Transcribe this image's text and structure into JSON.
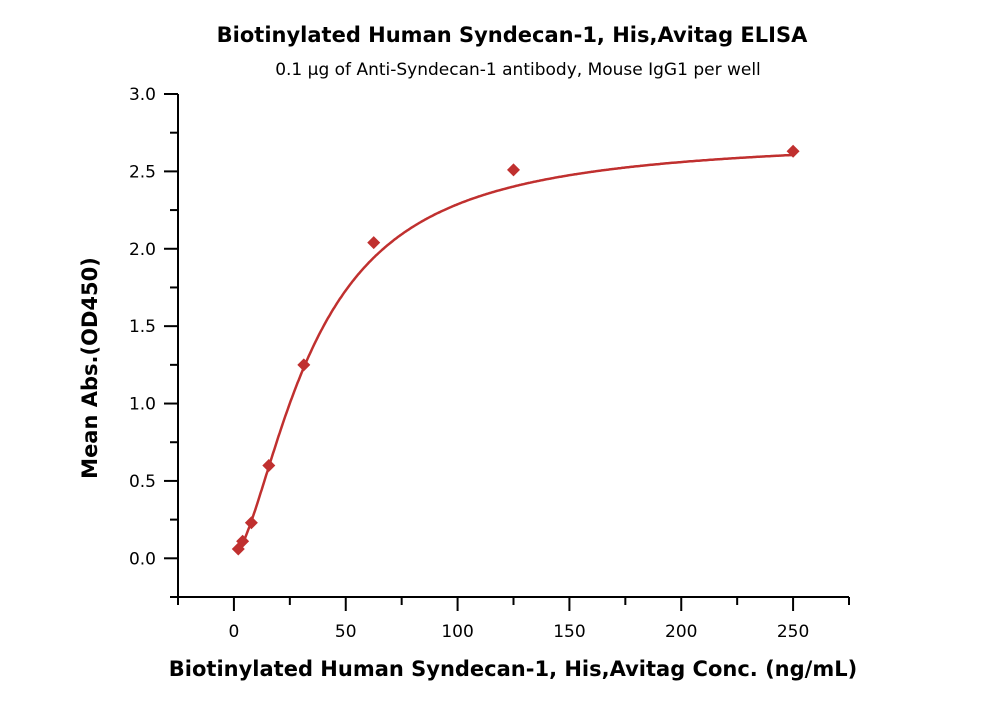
{
  "chart_data": {
    "type": "scatter",
    "title": "Biotinylated Human Syndecan-1, His,Avitag ELISA",
    "subtitle": "0.1 μg of Anti-Syndecan-1 antibody, Mouse IgG1 per well",
    "xlabel": "Biotinylated Human Syndecan-1, His,Avitag Conc. (ng/mL)",
    "ylabel": "Mean Abs.(OD450)",
    "xlim": [
      -25,
      275
    ],
    "ylim": [
      -0.25,
      3.0
    ],
    "xticks": [
      "0",
      "50",
      "100",
      "150",
      "200",
      "250"
    ],
    "yticks": [
      "0.0",
      "0.5",
      "1.0",
      "1.5",
      "2.0",
      "2.5",
      "3.0"
    ],
    "grid": false,
    "color": "#c0302f",
    "marker": "diamond",
    "fit_curve": "4-parameter logistic",
    "x": [
      1.95,
      3.9,
      7.8,
      15.6,
      31.25,
      62.5,
      125,
      250
    ],
    "y": [
      0.06,
      0.11,
      0.23,
      0.6,
      1.25,
      2.04,
      2.51,
      2.63
    ]
  }
}
